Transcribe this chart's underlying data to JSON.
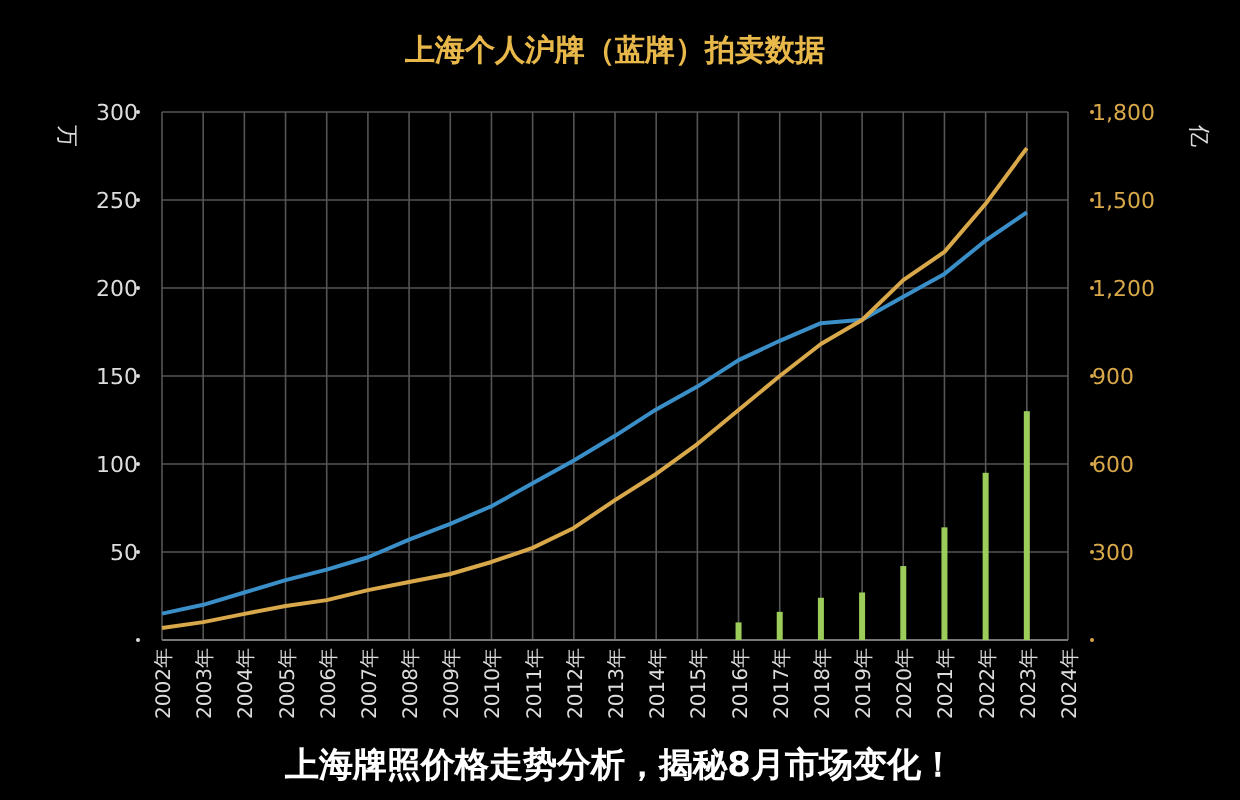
{
  "chart_data": {
    "type": "line",
    "title": "上海个人沪牌（蓝牌）拍卖数据",
    "ylabel": "万",
    "y2label": "亿",
    "categories": [
      "2002年",
      "2003年",
      "2004年",
      "2005年",
      "2006年",
      "2007年",
      "2008年",
      "2009年",
      "2010年",
      "2011年",
      "2012年",
      "2013年",
      "2014年",
      "2015年",
      "2016年",
      "2017年",
      "2018年",
      "2019年",
      "2020年",
      "2021年",
      "2022年",
      "2023年",
      "2024年"
    ],
    "series": [
      {
        "type": "bar",
        "color": "#9ccc5a",
        "values": [
          null,
          null,
          null,
          null,
          null,
          null,
          null,
          null,
          null,
          null,
          null,
          null,
          null,
          null,
          10,
          16,
          24,
          27,
          42,
          64,
          95,
          130,
          null
        ]
      },
      {
        "color": "#3a8fc8",
        "values": [
          15,
          20,
          27,
          34,
          40,
          47,
          57,
          66,
          76,
          89,
          102,
          116,
          131,
          144,
          159,
          170,
          180,
          182,
          195,
          208,
          227,
          243,
          null
        ]
      },
      {
        "color": "#d9a84a",
        "axis": "y2",
        "values": [
          41,
          61,
          89,
          116,
          136,
          170,
          198,
          225,
          266,
          314,
          382,
          477,
          566,
          668,
          784,
          900,
          1009,
          1091,
          1227,
          1323,
          1487,
          1677,
          null
        ]
      }
    ],
    "ylim": [
      0,
      300
    ],
    "yticks": [
      {
        "value": 0,
        "label": null
      },
      50,
      100,
      150,
      200,
      250,
      300
    ],
    "y2lim": [
      0,
      1800
    ],
    "y2ticks": [
      {
        "value": 0,
        "label": null
      },
      300,
      600,
      {
        "value": 900,
        "label": "900"
      },
      {
        "value": 1200,
        "label": "1,200"
      },
      {
        "value": 1500,
        "label": "1,500"
      },
      {
        "value": 1800,
        "label": "1,800"
      }
    ],
    "grid": true,
    "marker": "none",
    "line_style": "solid",
    "annotations": [
      "上海牌照价格走势分析，揭秘8月市场变化！"
    ]
  }
}
